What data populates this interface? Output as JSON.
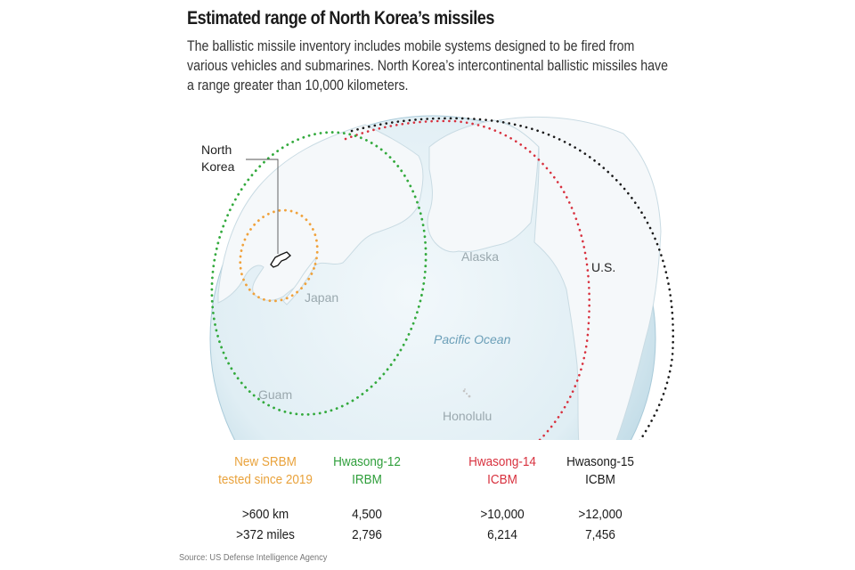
{
  "header": {
    "title": "Estimated range of North Korea’s missiles",
    "subtitle": "The ballistic missile inventory includes mobile systems designed to be fired from various vehicles and submarines. North Korea’s intercontinental ballistic missiles have a range greater than 10,000 kilometers."
  },
  "map": {
    "labels": {
      "north_korea_line1": "North",
      "north_korea_line2": "Korea",
      "japan": "Japan",
      "alaska": "Alaska",
      "us": "U.S.",
      "pacific": "Pacific Ocean",
      "guam": "Guam",
      "honolulu": "Honolulu"
    },
    "colors": {
      "ocean": "#e3f0f5",
      "land": "#f4f7f8",
      "srbm": "#f0a23c",
      "irbm": "#33aa3d",
      "hwasong14": "#d8313e",
      "hwasong15": "#1a1a1a"
    }
  },
  "legend": [
    {
      "name_line1": "New SRBM",
      "name_line2": "tested since 2019",
      "km": ">600 km",
      "miles": ">372 miles",
      "color": "#e9a23b"
    },
    {
      "name_line1": "Hwasong-12",
      "name_line2": "IRBM",
      "km": "4,500",
      "miles": "2,796",
      "color": "#2e9e3a"
    },
    {
      "name_line1": "Hwasong-14",
      "name_line2": "ICBM",
      "km": ">10,000",
      "miles": "6,214",
      "color": "#d8313e"
    },
    {
      "name_line1": "Hwasong-15",
      "name_line2": "ICBM",
      "km": ">12,000",
      "miles": "7,456",
      "color": "#1a1a1a"
    }
  ],
  "footer": {
    "source": "Source: US Defense Intelligence Agency"
  }
}
